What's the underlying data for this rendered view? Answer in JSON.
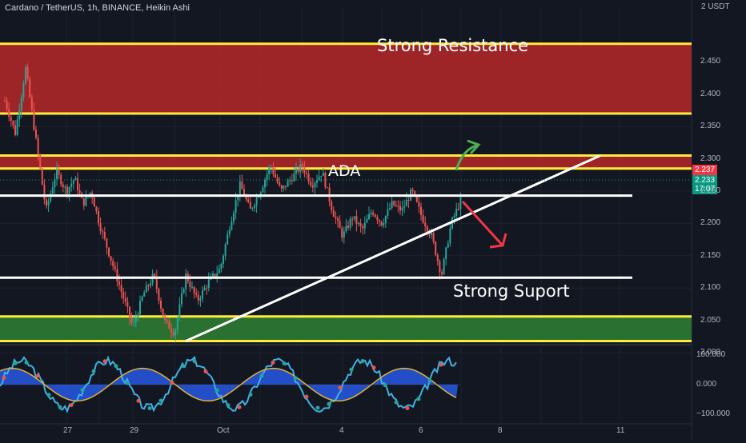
{
  "title": "Cardano / TetherUS, 1h, BINANCE, Heikin Ashi",
  "currency_label": "2 USDT",
  "chart_data": {
    "type": "candlestick",
    "title": "Cardano / TetherUS, 1h, BINANCE, Heikin Ashi",
    "y_ticks": [
      2.45,
      2.4,
      2.35,
      2.3,
      2.25,
      2.2,
      2.15,
      2.1,
      2.05,
      2.0
    ],
    "y_tick_labels": [
      "2.450",
      "2.400",
      "2.350",
      "2.300",
      "2.250",
      "2.200",
      "2.150",
      "2.100",
      "2.050",
      "2.000"
    ],
    "ylim": [
      1.986,
      2.502
    ],
    "x_ticks": [
      "27",
      "28",
      "29",
      "30",
      "Oct",
      "2",
      "3",
      "4",
      "5",
      "6",
      "7",
      "8",
      "9",
      "10",
      "11"
    ],
    "x_tick_labels": [
      "27",
      "29",
      "Oct",
      "4",
      "6",
      "8",
      "11"
    ],
    "price_path": [
      {
        "t": "25 12:00",
        "p": 2.39
      },
      {
        "t": "25 18:00",
        "p": 2.34
      },
      {
        "t": "26 00:00",
        "p": 2.44
      },
      {
        "t": "26 06:00",
        "p": 2.33
      },
      {
        "t": "26 12:00",
        "p": 2.22
      },
      {
        "t": "26 18:00",
        "p": 2.28
      },
      {
        "t": "27 00:00",
        "p": 2.25
      },
      {
        "t": "27 06:00",
        "p": 2.27
      },
      {
        "t": "27 12:00",
        "p": 2.23
      },
      {
        "t": "27 18:00",
        "p": 2.25
      },
      {
        "t": "28 00:00",
        "p": 2.2
      },
      {
        "t": "28 06:00",
        "p": 2.16
      },
      {
        "t": "28 12:00",
        "p": 2.12
      },
      {
        "t": "28 18:00",
        "p": 2.08
      },
      {
        "t": "29 00:00",
        "p": 2.04
      },
      {
        "t": "29 06:00",
        "p": 2.09
      },
      {
        "t": "29 12:00",
        "p": 2.12
      },
      {
        "t": "29 18:00",
        "p": 2.05
      },
      {
        "t": "30 00:00",
        "p": 2.03
      },
      {
        "t": "30 06:00",
        "p": 2.12
      },
      {
        "t": "30 12:00",
        "p": 2.08
      },
      {
        "t": "30 18:00",
        "p": 2.11
      },
      {
        "t": "1 00:00",
        "p": 2.13
      },
      {
        "t": "1 06:00",
        "p": 2.2
      },
      {
        "t": "1 12:00",
        "p": 2.26
      },
      {
        "t": "1 18:00",
        "p": 2.22
      },
      {
        "t": "2 00:00",
        "p": 2.25
      },
      {
        "t": "2 06:00",
        "p": 2.29
      },
      {
        "t": "2 12:00",
        "p": 2.25
      },
      {
        "t": "2 18:00",
        "p": 2.27
      },
      {
        "t": "3 00:00",
        "p": 2.29
      },
      {
        "t": "3 06:00",
        "p": 2.26
      },
      {
        "t": "3 12:00",
        "p": 2.28
      },
      {
        "t": "3 18:00",
        "p": 2.22
      },
      {
        "t": "4 00:00",
        "p": 2.18
      },
      {
        "t": "4 06:00",
        "p": 2.21
      },
      {
        "t": "4 12:00",
        "p": 2.19
      },
      {
        "t": "4 18:00",
        "p": 2.22
      },
      {
        "t": "5 00:00",
        "p": 2.2
      },
      {
        "t": "5 06:00",
        "p": 2.23
      },
      {
        "t": "5 12:00",
        "p": 2.22
      },
      {
        "t": "5 18:00",
        "p": 2.25
      },
      {
        "t": "6 00:00",
        "p": 2.21
      },
      {
        "t": "6 06:00",
        "p": 2.18
      },
      {
        "t": "6 12:00",
        "p": 2.12
      },
      {
        "t": "6 18:00",
        "p": 2.2
      },
      {
        "t": "7 00:00",
        "p": 2.237
      }
    ],
    "zones": [
      {
        "name": "resistance",
        "label": "Strong Resistance",
        "from": 2.37,
        "to": 2.478,
        "color": "#b22828"
      },
      {
        "name": "resistance-2",
        "label": "",
        "from": 2.285,
        "to": 2.305,
        "color": "#b22828"
      },
      {
        "name": "support",
        "label": "Strong Suport",
        "from": 2.018,
        "to": 2.056,
        "color": "#2e7d32"
      }
    ],
    "annotations": [
      {
        "label": "ADA",
        "price": 2.24
      },
      {
        "type": "horizontal",
        "price": 2.243,
        "color": "#ffffff"
      },
      {
        "type": "horizontal",
        "price": 2.116,
        "color": "#ffffff"
      },
      {
        "type": "trendline",
        "from_price": 2.018,
        "from_time": "30 06:00",
        "to_price": 2.305,
        "to_time": "10 12:00",
        "color": "#ffffff"
      },
      {
        "type": "arrow-up",
        "color": "#4caf50"
      },
      {
        "type": "arrow-down",
        "color": "#f23645"
      }
    ],
    "last_price": "2.237",
    "last_price_2": "2.233",
    "countdown": "17:07",
    "oscillator": {
      "y_ticks": [
        "100.000",
        "0.000",
        "−100.000"
      ],
      "ylim": [
        -115,
        115
      ]
    }
  },
  "colors": {
    "background": "#131722",
    "up_candle": "#26a69a",
    "down_candle": "#ef5350",
    "resistance_fill": "#b22828",
    "resistance_border": "#ffeb3b",
    "support_fill": "#2e7d32",
    "tag_red": "#f23645",
    "tag_teal": "#089981"
  }
}
